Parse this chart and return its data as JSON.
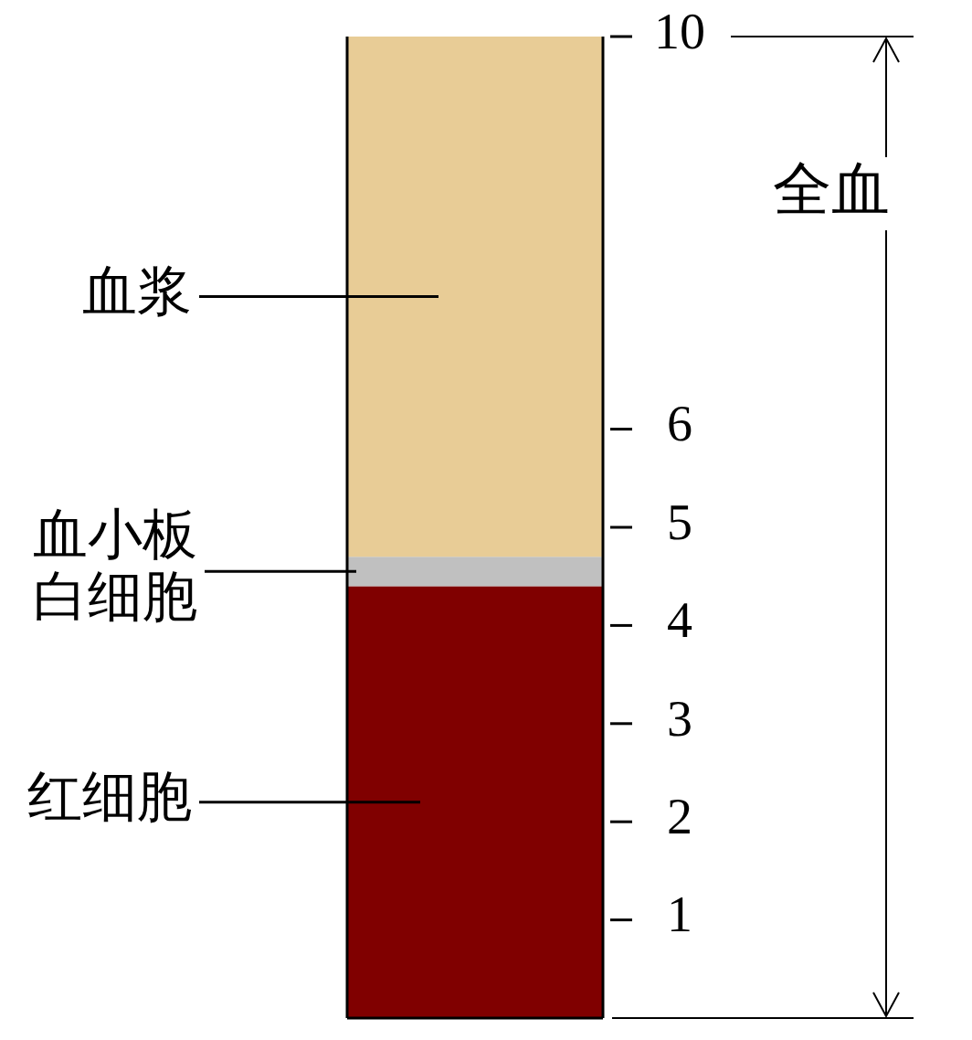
{
  "chart_data": {
    "type": "bar",
    "stacked": true,
    "categories": [
      null
    ],
    "ylim": [
      0,
      10
    ],
    "yticks": [
      1,
      2,
      3,
      4,
      5,
      6,
      10
    ],
    "grid": false,
    "legend": false,
    "series": [
      {
        "name": "红细胞",
        "color": "#800000",
        "values": [
          4.4
        ]
      },
      {
        "name": "血小板白细胞",
        "color": "#c0c0c0",
        "values": [
          0.3
        ]
      },
      {
        "name": "血浆",
        "color": "#e8cc96",
        "values": [
          5.3
        ]
      }
    ],
    "annotations": [
      "全血"
    ]
  }
}
